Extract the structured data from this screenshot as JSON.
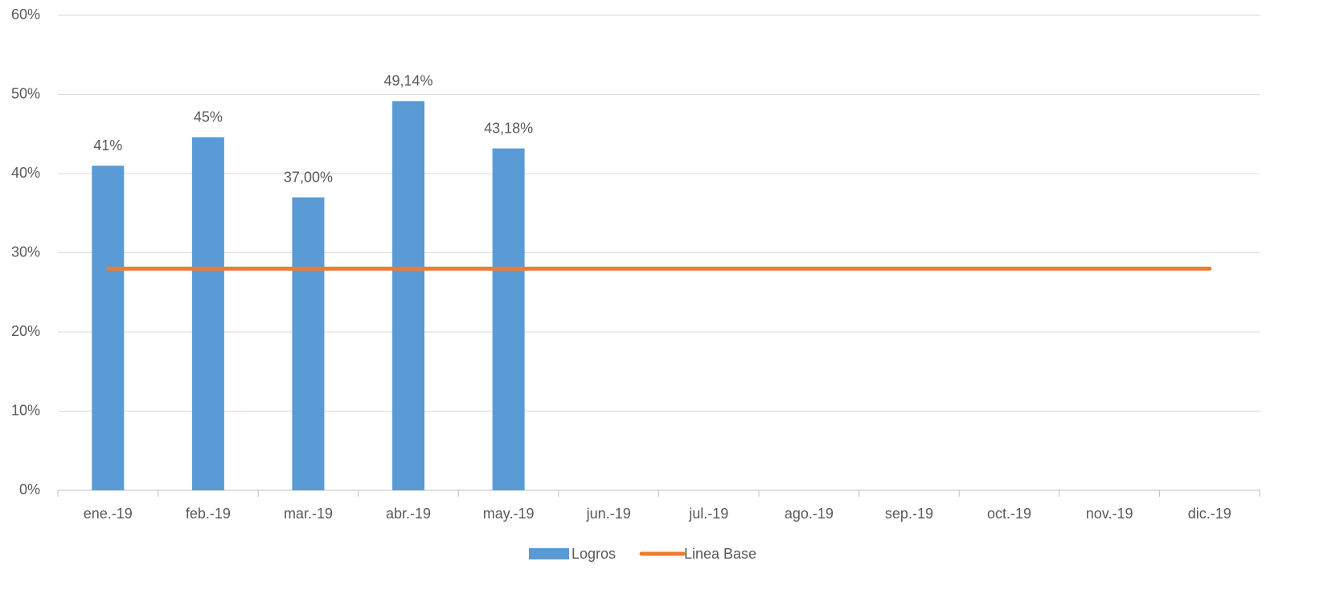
{
  "chart_data": {
    "type": "bar-line",
    "categories": [
      "ene.-19",
      "feb.-19",
      "mar.-19",
      "abr.-19",
      "may.-19",
      "jun.-19",
      "jul.-19",
      "ago.-19",
      "sep.-19",
      "oct.-19",
      "nov.-19",
      "dic.-19"
    ],
    "series": [
      {
        "name": "Logros",
        "type": "bar",
        "color": "#5b9bd5",
        "values": [
          41,
          44.6,
          37.0,
          49.14,
          43.18,
          null,
          null,
          null,
          null,
          null,
          null,
          null
        ],
        "value_labels": [
          "41%",
          "45%",
          "37,00%",
          "49,14%",
          "43,18%",
          null,
          null,
          null,
          null,
          null,
          null,
          null
        ]
      },
      {
        "name": "Linea Base",
        "type": "line",
        "color": "#ed7d31",
        "values": [
          28,
          28,
          28,
          28,
          28,
          28,
          28,
          28,
          28,
          28,
          28,
          28
        ]
      }
    ],
    "ylim": [
      0,
      60
    ],
    "yticks": [
      {
        "value": 0,
        "label": "0%"
      },
      {
        "value": 10,
        "label": "10%"
      },
      {
        "value": 20,
        "label": "20%"
      },
      {
        "value": 30,
        "label": "30%"
      },
      {
        "value": 40,
        "label": "40%"
      },
      {
        "value": 50,
        "label": "50%"
      },
      {
        "value": 60,
        "label": "60%"
      }
    ],
    "grid": true,
    "legend": "bottom"
  }
}
